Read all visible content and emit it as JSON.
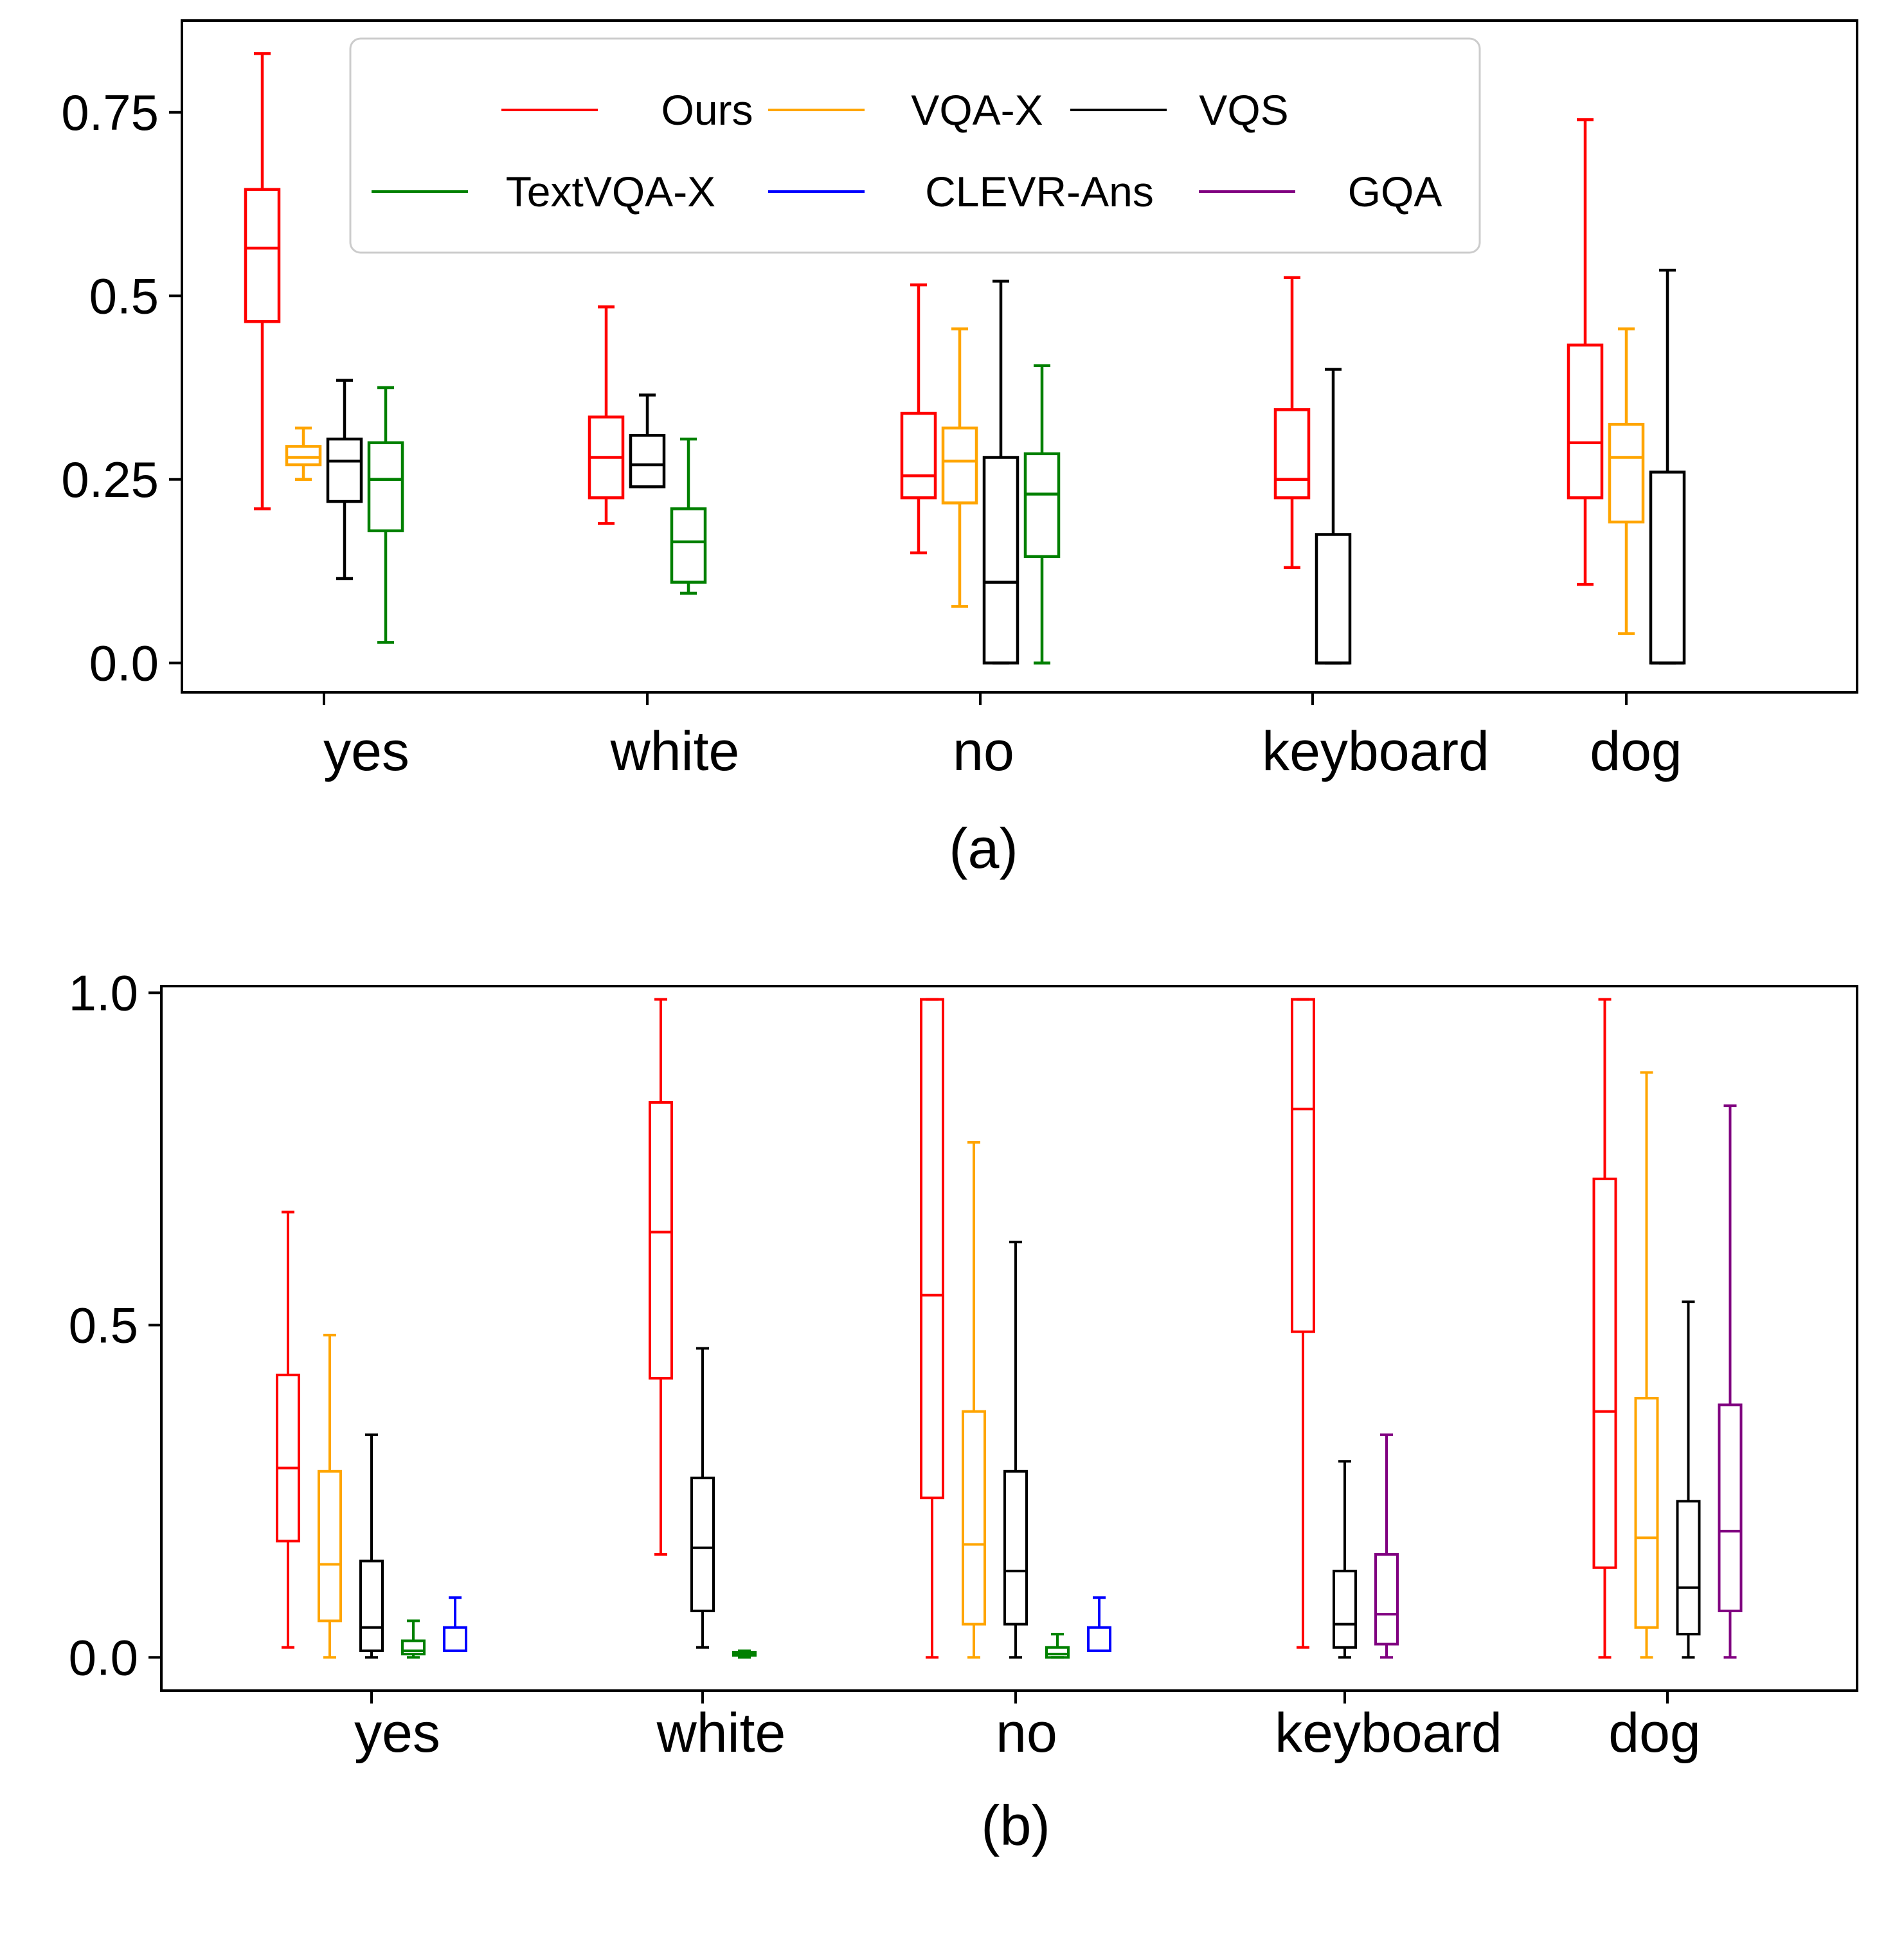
{
  "chart_data": [
    {
      "type": "boxplot",
      "caption": "(a)",
      "categories": [
        "yes",
        "white",
        "no",
        "keyboard",
        "dog"
      ],
      "ylim": [
        -0.04,
        0.875
      ],
      "yticks": [
        0.0,
        0.25,
        0.5,
        0.75
      ],
      "ytick_labels": [
        "0.0",
        "0.25",
        "0.5",
        "0.75"
      ],
      "legend": {
        "position": "top",
        "entries": [
          {
            "name": "Ours",
            "color": "#ff0000"
          },
          {
            "name": "VQA-X",
            "color": "#ffa500"
          },
          {
            "name": "VQS",
            "color": "#000000"
          },
          {
            "name": "TextVQA-X",
            "color": "#008000"
          },
          {
            "name": "CLEVR-Ans",
            "color": "#0000ff"
          },
          {
            "name": "GQA",
            "color": "#800080"
          }
        ]
      },
      "groups": [
        {
          "category": "yes",
          "boxes": [
            {
              "series": "Ours",
              "whisker_low": 0.21,
              "q1": 0.465,
              "median": 0.565,
              "q3": 0.645,
              "whisker_high": 0.83
            },
            {
              "series": "VQA-X",
              "whisker_low": 0.25,
              "q1": 0.27,
              "median": 0.28,
              "q3": 0.295,
              "whisker_high": 0.32
            },
            {
              "series": "VQS",
              "whisker_low": 0.115,
              "q1": 0.22,
              "median": 0.275,
              "q3": 0.305,
              "whisker_high": 0.385
            },
            {
              "series": "TextVQA-X",
              "whisker_low": 0.028,
              "q1": 0.18,
              "median": 0.25,
              "q3": 0.3,
              "whisker_high": 0.375
            }
          ]
        },
        {
          "category": "white",
          "boxes": [
            {
              "series": "Ours",
              "whisker_low": 0.19,
              "q1": 0.225,
              "median": 0.28,
              "q3": 0.335,
              "whisker_high": 0.485
            },
            {
              "series": "VQS",
              "whisker_low": 0.24,
              "q1": 0.24,
              "median": 0.27,
              "q3": 0.31,
              "whisker_high": 0.365
            },
            {
              "series": "TextVQA-X",
              "whisker_low": 0.095,
              "q1": 0.11,
              "median": 0.165,
              "q3": 0.21,
              "whisker_high": 0.305
            }
          ]
        },
        {
          "category": "no",
          "boxes": [
            {
              "series": "Ours",
              "whisker_low": 0.15,
              "q1": 0.225,
              "median": 0.255,
              "q3": 0.34,
              "whisker_high": 0.515
            },
            {
              "series": "VQA-X",
              "whisker_low": 0.077,
              "q1": 0.218,
              "median": 0.275,
              "q3": 0.32,
              "whisker_high": 0.455
            },
            {
              "series": "VQS",
              "whisker_low": 0.0,
              "q1": 0.0,
              "median": 0.11,
              "q3": 0.28,
              "whisker_high": 0.52
            },
            {
              "series": "TextVQA-X",
              "whisker_low": 0.0,
              "q1": 0.145,
              "median": 0.23,
              "q3": 0.285,
              "whisker_high": 0.405
            }
          ]
        },
        {
          "category": "keyboard",
          "boxes": [
            {
              "series": "Ours",
              "whisker_low": 0.13,
              "q1": 0.225,
              "median": 0.25,
              "q3": 0.345,
              "whisker_high": 0.525
            },
            {
              "series": "VQS",
              "whisker_low": 0.0,
              "q1": 0.0,
              "median": 0.0,
              "q3": 0.175,
              "whisker_high": 0.4
            }
          ]
        },
        {
          "category": "dog",
          "boxes": [
            {
              "series": "Ours",
              "whisker_low": 0.107,
              "q1": 0.225,
              "median": 0.3,
              "q3": 0.433,
              "whisker_high": 0.74
            },
            {
              "series": "VQA-X",
              "whisker_low": 0.04,
              "q1": 0.192,
              "median": 0.28,
              "q3": 0.325,
              "whisker_high": 0.455
            },
            {
              "series": "VQS",
              "whisker_low": 0.0,
              "q1": 0.0,
              "median": 0.0,
              "q3": 0.26,
              "whisker_high": 0.535
            }
          ]
        }
      ]
    },
    {
      "type": "boxplot",
      "caption": "(b)",
      "categories": [
        "yes",
        "white",
        "no",
        "keyboard",
        "dog"
      ],
      "ylim": [
        -0.05,
        1.01
      ],
      "yticks": [
        0.0,
        0.5,
        1.0
      ],
      "ytick_labels": [
        "0.0",
        "0.5",
        "1.0"
      ],
      "groups": [
        {
          "category": "yes",
          "boxes": [
            {
              "series": "Ours",
              "whisker_low": 0.015,
              "q1": 0.175,
              "median": 0.285,
              "q3": 0.425,
              "whisker_high": 0.67
            },
            {
              "series": "VQA-X",
              "whisker_low": 0.0,
              "q1": 0.055,
              "median": 0.14,
              "q3": 0.28,
              "whisker_high": 0.485
            },
            {
              "series": "VQS",
              "whisker_low": 0.0,
              "q1": 0.01,
              "median": 0.045,
              "q3": 0.145,
              "whisker_high": 0.335
            },
            {
              "series": "TextVQA-X",
              "whisker_low": 0.0,
              "q1": 0.005,
              "median": 0.01,
              "q3": 0.025,
              "whisker_high": 0.055
            },
            {
              "series": "CLEVR-Ans",
              "whisker_low": 0.01,
              "q1": 0.01,
              "median": 0.01,
              "q3": 0.045,
              "whisker_high": 0.09
            }
          ]
        },
        {
          "category": "white",
          "boxes": [
            {
              "series": "Ours",
              "whisker_low": 0.155,
              "q1": 0.42,
              "median": 0.64,
              "q3": 0.835,
              "whisker_high": 0.99
            },
            {
              "series": "VQS",
              "whisker_low": 0.015,
              "q1": 0.07,
              "median": 0.165,
              "q3": 0.27,
              "whisker_high": 0.465
            },
            {
              "series": "TextVQA-X",
              "whisker_low": 0.0,
              "q1": 0.003,
              "median": 0.005,
              "q3": 0.008,
              "whisker_high": 0.01
            }
          ]
        },
        {
          "category": "no",
          "boxes": [
            {
              "series": "Ours",
              "whisker_low": 0.0,
              "q1": 0.24,
              "median": 0.545,
              "q3": 0.99,
              "whisker_high": 0.99
            },
            {
              "series": "VQA-X",
              "whisker_low": 0.0,
              "q1": 0.05,
              "median": 0.17,
              "q3": 0.37,
              "whisker_high": 0.775
            },
            {
              "series": "VQS",
              "whisker_low": 0.0,
              "q1": 0.05,
              "median": 0.13,
              "q3": 0.28,
              "whisker_high": 0.625
            },
            {
              "series": "TextVQA-X",
              "whisker_low": 0.0,
              "q1": 0.0,
              "median": 0.005,
              "q3": 0.015,
              "whisker_high": 0.035
            },
            {
              "series": "CLEVR-Ans",
              "whisker_low": 0.01,
              "q1": 0.01,
              "median": 0.01,
              "q3": 0.045,
              "whisker_high": 0.09
            }
          ]
        },
        {
          "category": "keyboard",
          "boxes": [
            {
              "series": "Ours",
              "whisker_low": 0.015,
              "q1": 0.49,
              "median": 0.825,
              "q3": 0.99,
              "whisker_high": 0.99
            },
            {
              "series": "VQS",
              "whisker_low": 0.0,
              "q1": 0.015,
              "median": 0.05,
              "q3": 0.13,
              "whisker_high": 0.295
            },
            {
              "series": "GQA",
              "whisker_low": 0.0,
              "q1": 0.02,
              "median": 0.065,
              "q3": 0.155,
              "whisker_high": 0.335
            }
          ]
        },
        {
          "category": "dog",
          "boxes": [
            {
              "series": "Ours",
              "whisker_low": 0.0,
              "q1": 0.135,
              "median": 0.37,
              "q3": 0.72,
              "whisker_high": 0.99
            },
            {
              "series": "VQA-X",
              "whisker_low": 0.0,
              "q1": 0.045,
              "median": 0.18,
              "q3": 0.39,
              "whisker_high": 0.88
            },
            {
              "series": "VQS",
              "whisker_low": 0.0,
              "q1": 0.035,
              "median": 0.105,
              "q3": 0.235,
              "whisker_high": 0.535
            },
            {
              "series": "GQA",
              "whisker_low": 0.0,
              "q1": 0.07,
              "median": 0.19,
              "q3": 0.38,
              "whisker_high": 0.83
            }
          ]
        }
      ]
    }
  ]
}
